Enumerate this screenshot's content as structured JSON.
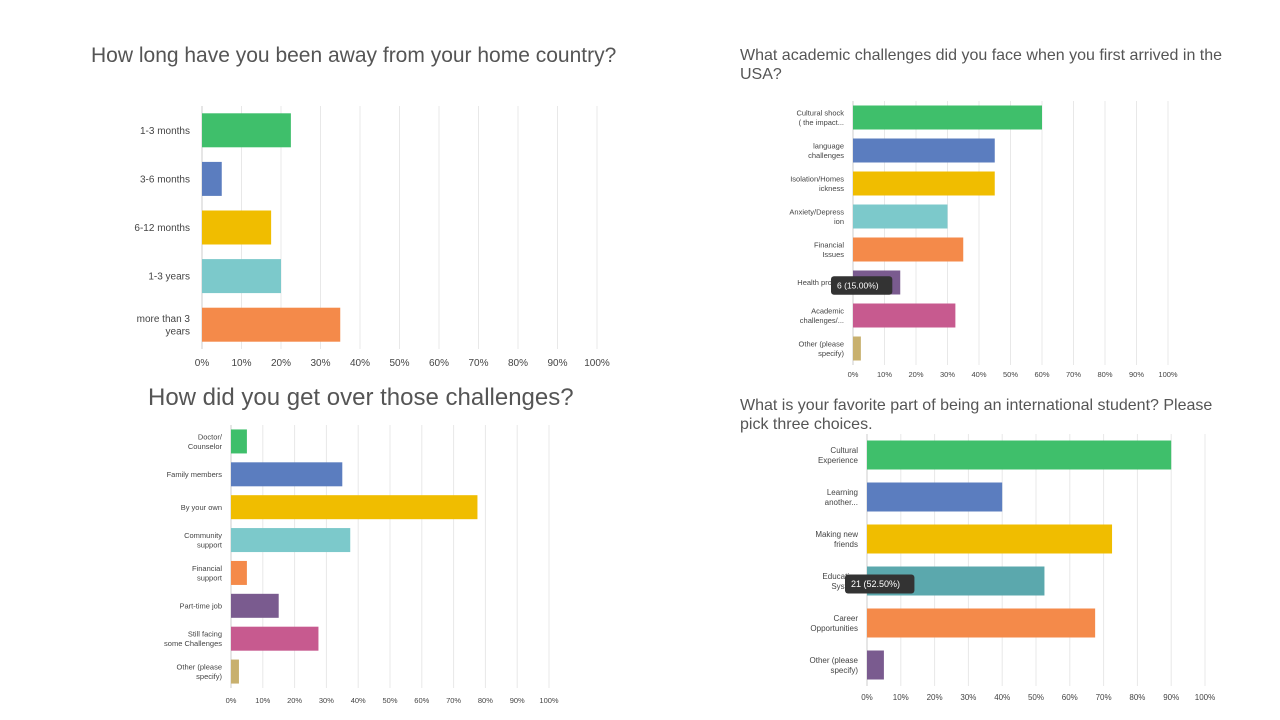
{
  "colors": {
    "green": "#3fbf6b",
    "blue": "#5b7dbf",
    "yellow": "#f0bd00",
    "teal": "#7cc9cb",
    "teal_dark": "#5ba8ad",
    "orange": "#f48a4a",
    "purple": "#7a5b8f",
    "pink": "#c75a8f",
    "khaki": "#c8b06e",
    "tooltip_bg": "#333333"
  },
  "chart_data": [
    {
      "type": "bar",
      "orientation": "horizontal",
      "title": "How long have you been away from your home country?",
      "categories": [
        [
          "1-3 months"
        ],
        [
          "3-6 months"
        ],
        [
          "6-12 months"
        ],
        [
          "1-3 years"
        ],
        [
          "more than 3",
          "years"
        ]
      ],
      "values": [
        22.5,
        5,
        17.5,
        20,
        35
      ],
      "colors": [
        "green",
        "blue",
        "yellow",
        "teal",
        "orange"
      ],
      "xlim": [
        0,
        100
      ],
      "xticks": [
        "0%",
        "10%",
        "20%",
        "30%",
        "40%",
        "50%",
        "60%",
        "70%",
        "80%",
        "90%",
        "100%"
      ],
      "grid": true
    },
    {
      "type": "bar",
      "orientation": "horizontal",
      "title": "What academic challenges did you face when you first arrived in the USA?",
      "categories": [
        [
          "Cultural shock",
          "( the impact..."
        ],
        [
          "language",
          "challenges"
        ],
        [
          "Isolation/Homes",
          "ickness"
        ],
        [
          "Anxiety/Depress",
          "ion"
        ],
        [
          "Financial",
          "Issues"
        ],
        [
          "Health probl..."
        ],
        [
          "Academic",
          "challenges/..."
        ],
        [
          "Other (please",
          "specify)"
        ]
      ],
      "values": [
        60,
        45,
        45,
        30,
        35,
        15,
        32.5,
        2.5
      ],
      "colors": [
        "green",
        "blue",
        "yellow",
        "teal",
        "orange",
        "purple",
        "pink",
        "khaki"
      ],
      "xlim": [
        0,
        100
      ],
      "xticks": [
        "0%",
        "10%",
        "20%",
        "30%",
        "40%",
        "50%",
        "60%",
        "70%",
        "80%",
        "90%",
        "100%"
      ],
      "grid": true,
      "tooltip": {
        "index": 5,
        "text": "6 (15.00%)"
      }
    },
    {
      "type": "bar",
      "orientation": "horizontal",
      "title": "How did you get over those challenges?",
      "categories": [
        [
          "Doctor/",
          "Counselor"
        ],
        [
          "Family members"
        ],
        [
          "By your own"
        ],
        [
          "Community",
          "support"
        ],
        [
          "Financial",
          "support"
        ],
        [
          "Part-time job"
        ],
        [
          "Still facing",
          "some Challenges"
        ],
        [
          "Other (please",
          "specify)"
        ]
      ],
      "values": [
        5,
        35,
        77.5,
        37.5,
        5,
        15,
        27.5,
        2.5
      ],
      "colors": [
        "green",
        "blue",
        "yellow",
        "teal",
        "orange",
        "purple",
        "pink",
        "khaki"
      ],
      "xlim": [
        0,
        100
      ],
      "xticks": [
        "0%",
        "10%",
        "20%",
        "30%",
        "40%",
        "50%",
        "60%",
        "70%",
        "80%",
        "90%",
        "100%"
      ],
      "grid": true
    },
    {
      "type": "bar",
      "orientation": "horizontal",
      "title": "What is your favorite part of being an international student? Please pick three choices.",
      "categories": [
        [
          "Cultural",
          "Experience"
        ],
        [
          "Learning",
          "another..."
        ],
        [
          "Making new",
          "friends"
        ],
        [
          "Education",
          "System"
        ],
        [
          "Career",
          "Opportunities"
        ],
        [
          "Other (please",
          "specify)"
        ]
      ],
      "values": [
        90,
        40,
        72.5,
        52.5,
        67.5,
        5
      ],
      "colors": [
        "green",
        "blue",
        "yellow",
        "teal_dark",
        "orange",
        "purple"
      ],
      "xlim": [
        0,
        100
      ],
      "xticks": [
        "0%",
        "10%",
        "20%",
        "30%",
        "40%",
        "50%",
        "60%",
        "70%",
        "80%",
        "90%",
        "100%"
      ],
      "grid": true,
      "tooltip": {
        "index": 3,
        "text": "21 (52.50%)"
      }
    }
  ]
}
